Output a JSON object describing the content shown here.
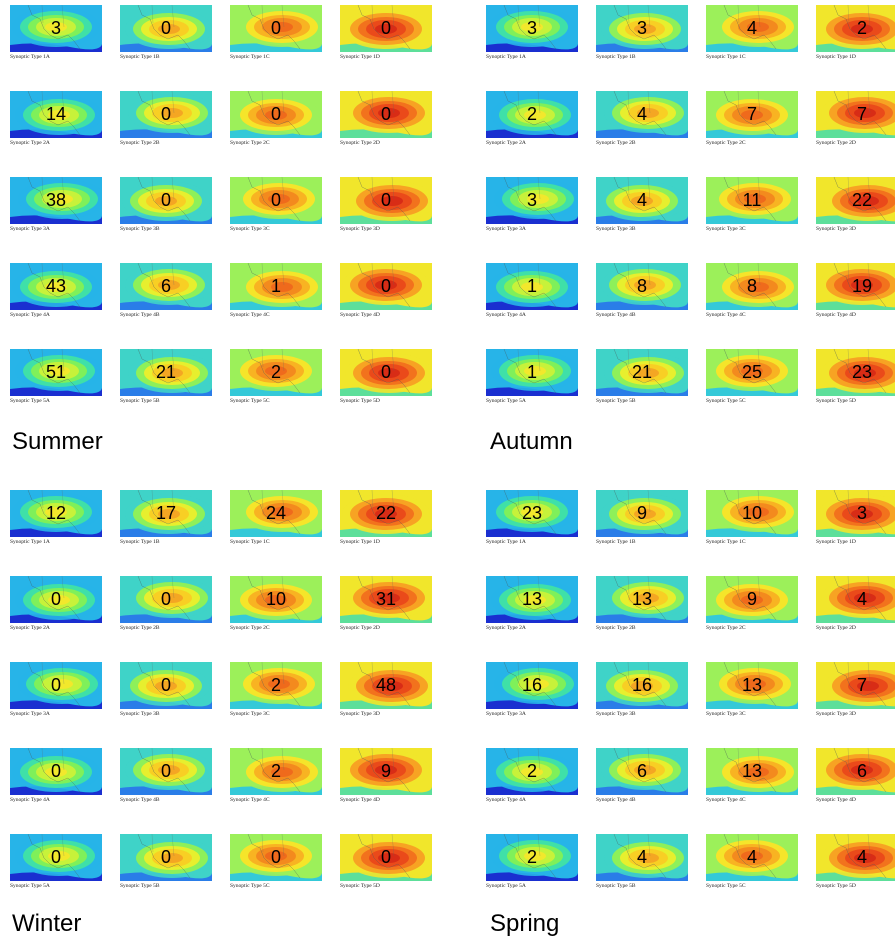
{
  "rows": [
    "1",
    "2",
    "3",
    "4",
    "5"
  ],
  "cols": [
    "A",
    "B",
    "C",
    "D"
  ],
  "caption_prefix": "Synoptic Type ",
  "seasons": [
    {
      "name": "Summer",
      "counts": [
        [
          3,
          0,
          0,
          0
        ],
        [
          14,
          0,
          0,
          0
        ],
        [
          38,
          0,
          0,
          0
        ],
        [
          43,
          6,
          1,
          0
        ],
        [
          51,
          21,
          2,
          0
        ]
      ]
    },
    {
      "name": "Autumn",
      "counts": [
        [
          3,
          3,
          4,
          2
        ],
        [
          2,
          4,
          7,
          7
        ],
        [
          3,
          4,
          11,
          22
        ],
        [
          1,
          8,
          8,
          19
        ],
        [
          1,
          21,
          25,
          23
        ]
      ]
    },
    {
      "name": "Winter",
      "counts": [
        [
          12,
          17,
          24,
          22
        ],
        [
          0,
          0,
          10,
          31
        ],
        [
          0,
          0,
          2,
          48
        ],
        [
          0,
          0,
          2,
          9
        ],
        [
          0,
          0,
          0,
          0
        ]
      ]
    },
    {
      "name": "Spring",
      "counts": [
        [
          23,
          9,
          10,
          3
        ],
        [
          13,
          13,
          9,
          4
        ],
        [
          16,
          16,
          13,
          7
        ],
        [
          2,
          6,
          13,
          6
        ],
        [
          2,
          4,
          4,
          4
        ]
      ]
    }
  ],
  "colors": {
    "A": [
      "#1a2fd0",
      "#27b4e8",
      "#3fe0a8",
      "#7ff05a",
      "#c7f23a",
      "#f2e82c"
    ],
    "B": [
      "#2a7de8",
      "#3fd3c8",
      "#8ef05a",
      "#e7ef2e",
      "#f8cf24",
      "#f4a623"
    ],
    "C": [
      "#34c9d8",
      "#9cf05a",
      "#f5e52a",
      "#f8b322",
      "#f38a1e",
      "#ef6a1c"
    ],
    "D": [
      "#5ddf9a",
      "#f1e62b",
      "#f7a323",
      "#f2721d",
      "#ea4a1a",
      "#d82c16"
    ]
  }
}
